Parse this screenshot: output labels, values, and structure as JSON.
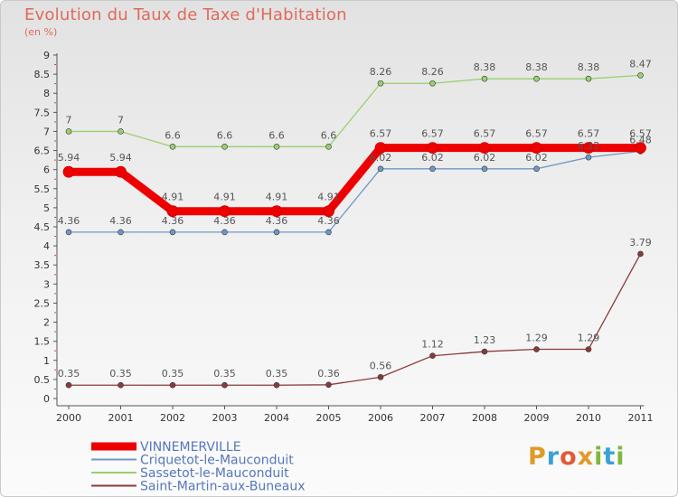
{
  "title": "Evolution du Taux de Taxe d'Habitation",
  "subtitle": "(en %)",
  "logo": {
    "text": "Proxiti"
  },
  "chart_data": {
    "type": "line",
    "title": "Evolution du Taux de Taxe d'Habitation",
    "ylabel": "(en %)",
    "xlabel": "",
    "ylim": [
      0,
      9
    ],
    "yticks": [
      "0",
      "0.5",
      "1",
      "1.5",
      "2",
      "2.5",
      "3",
      "3.5",
      "4",
      "4.5",
      "5",
      "5.5",
      "6",
      "6.5",
      "7",
      "7.5",
      "8",
      "8.5",
      "9"
    ],
    "categories": [
      "2000",
      "2001",
      "2002",
      "2003",
      "2004",
      "2005",
      "2006",
      "2007",
      "2008",
      "2009",
      "2010",
      "2011"
    ],
    "grid": false,
    "legend_position": "bottom-left",
    "series": [
      {
        "name": "VINNEMERVILLE",
        "color": "#ee0000",
        "values": [
          5.94,
          5.94,
          4.91,
          4.91,
          4.91,
          4.91,
          6.57,
          6.57,
          6.57,
          6.57,
          6.57,
          6.57
        ],
        "labels": [
          "5.94",
          "5.94",
          "4.91",
          "4.91",
          "4.91",
          "4.91",
          "6.57",
          "6.57",
          "6.57",
          "6.57",
          "6.57",
          "6.57"
        ]
      },
      {
        "name": "Criquetot-le-Mauconduit",
        "color": "#6f98c8",
        "values": [
          4.36,
          4.36,
          4.36,
          4.36,
          4.36,
          4.36,
          6.02,
          6.02,
          6.02,
          6.02,
          6.32,
          6.48
        ],
        "labels": [
          "4.36",
          "4.36",
          "4.36",
          "4.36",
          "4.36",
          "4.36",
          "6.02",
          "6.02",
          "6.02",
          "6.02",
          "6.32",
          "6.48"
        ]
      },
      {
        "name": "Sassetot-le-Mauconduit",
        "color": "#99d070",
        "values": [
          7,
          7,
          6.6,
          6.6,
          6.6,
          6.6,
          8.26,
          8.26,
          8.38,
          8.38,
          8.38,
          8.47
        ],
        "labels": [
          "7",
          "7",
          "6.6",
          "6.6",
          "6.6",
          "6.6",
          "8.26",
          "8.26",
          "8.38",
          "8.38",
          "8.38",
          "8.47"
        ]
      },
      {
        "name": "Saint-Martin-aux-Buneaux",
        "color": "#8b3a3a",
        "values": [
          0.35,
          0.35,
          0.35,
          0.35,
          0.35,
          0.36,
          0.56,
          1.12,
          1.23,
          1.29,
          1.29,
          3.79
        ],
        "labels": [
          "0.35",
          "0.35",
          "0.35",
          "0.35",
          "0.35",
          "0.36",
          "0.56",
          "1.12",
          "1.23",
          "1.29",
          "1.29",
          "3.79"
        ]
      }
    ]
  }
}
